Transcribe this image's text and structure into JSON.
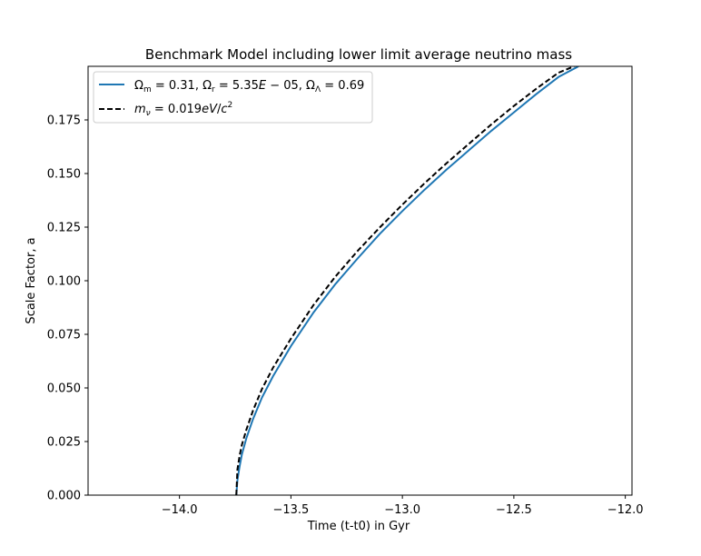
{
  "chart_data": {
    "type": "line",
    "title": "Benchmark Model including lower limit average neutrino mass",
    "xlabel": "Time (t-t0) in Gyr",
    "ylabel": "Scale Factor, a",
    "xlim": [
      -14.41,
      -11.97
    ],
    "ylim": [
      0.0,
      0.2
    ],
    "xticks": [
      -14.0,
      -13.5,
      -13.0,
      -12.5,
      -12.0
    ],
    "xtick_labels": [
      "−14.0",
      "−13.5",
      "−13.0",
      "−12.5",
      "−12.0"
    ],
    "yticks": [
      0.0,
      0.025,
      0.05,
      0.075,
      0.1,
      0.125,
      0.15,
      0.175
    ],
    "ytick_labels": [
      "0.000",
      "0.025",
      "0.050",
      "0.075",
      "0.100",
      "0.125",
      "0.150",
      "0.175"
    ],
    "grid": false,
    "legend_position": "top-left",
    "series": [
      {
        "name": "Ωm = 0.31, Ωr = 5.35E−05, ΩΛ = 0.69",
        "color": "#1f77b4",
        "dash": "solid",
        "x": [
          -13.745,
          -13.74,
          -13.73,
          -13.72,
          -13.7,
          -13.67,
          -13.63,
          -13.58,
          -13.5,
          -13.4,
          -13.3,
          -13.2,
          -13.1,
          -13.0,
          -12.9,
          -12.8,
          -12.7,
          -12.6,
          -12.5,
          -12.4,
          -12.3,
          -12.21
        ],
        "y": [
          0.0,
          0.007,
          0.0135,
          0.019,
          0.0265,
          0.0355,
          0.0455,
          0.0555,
          0.0695,
          0.085,
          0.0985,
          0.1105,
          0.122,
          0.1325,
          0.1425,
          0.152,
          0.161,
          0.17,
          0.1785,
          0.187,
          0.195,
          0.2
        ]
      },
      {
        "name": "mν = 0.019eV/c²",
        "color": "#000000",
        "dash": "dashed",
        "x": [
          -13.745,
          -13.74,
          -13.73,
          -13.72,
          -13.7,
          -13.67,
          -13.63,
          -13.58,
          -13.5,
          -13.4,
          -13.3,
          -13.2,
          -13.1,
          -13.0,
          -12.9,
          -12.8,
          -12.7,
          -12.6,
          -12.5,
          -12.4,
          -12.3,
          -12.23
        ],
        "y": [
          0.0,
          0.012,
          0.0185,
          0.0235,
          0.0305,
          0.0395,
          0.0495,
          0.0595,
          0.073,
          0.0885,
          0.102,
          0.114,
          0.125,
          0.1355,
          0.1455,
          0.155,
          0.164,
          0.173,
          0.1815,
          0.1895,
          0.197,
          0.2
        ]
      }
    ]
  }
}
